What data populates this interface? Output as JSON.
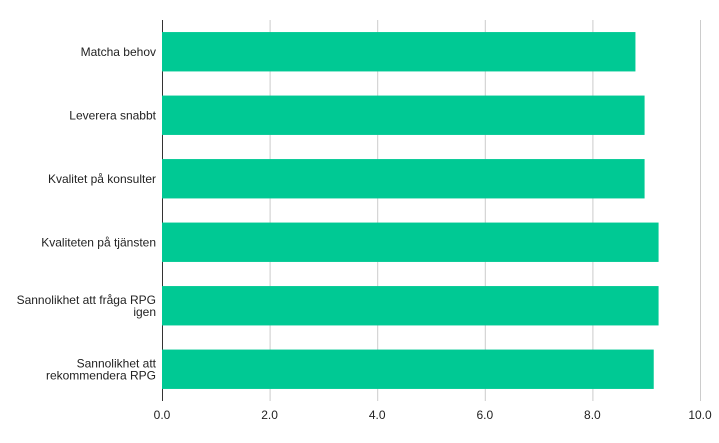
{
  "chart_data": {
    "type": "bar",
    "orientation": "horizontal",
    "categories": [
      [
        "Matcha behov"
      ],
      [
        "Leverera snabbt"
      ],
      [
        "Kvalitet på konsulter"
      ],
      [
        "Kvaliteten på tjänsten"
      ],
      [
        "Sannolikhet att fråga RPG",
        "igen"
      ],
      [
        "Sannolikhet att",
        "rekommendera RPG"
      ]
    ],
    "values": [
      8.8,
      8.97,
      8.97,
      9.23,
      9.23,
      9.14
    ],
    "xlim": [
      0,
      10
    ],
    "xticks": [
      "0.0",
      "2.0",
      "4.0",
      "6.0",
      "8.0",
      "10.0"
    ],
    "grid": true,
    "bar_color": "#00c994",
    "title": "",
    "xlabel": "",
    "ylabel": ""
  }
}
